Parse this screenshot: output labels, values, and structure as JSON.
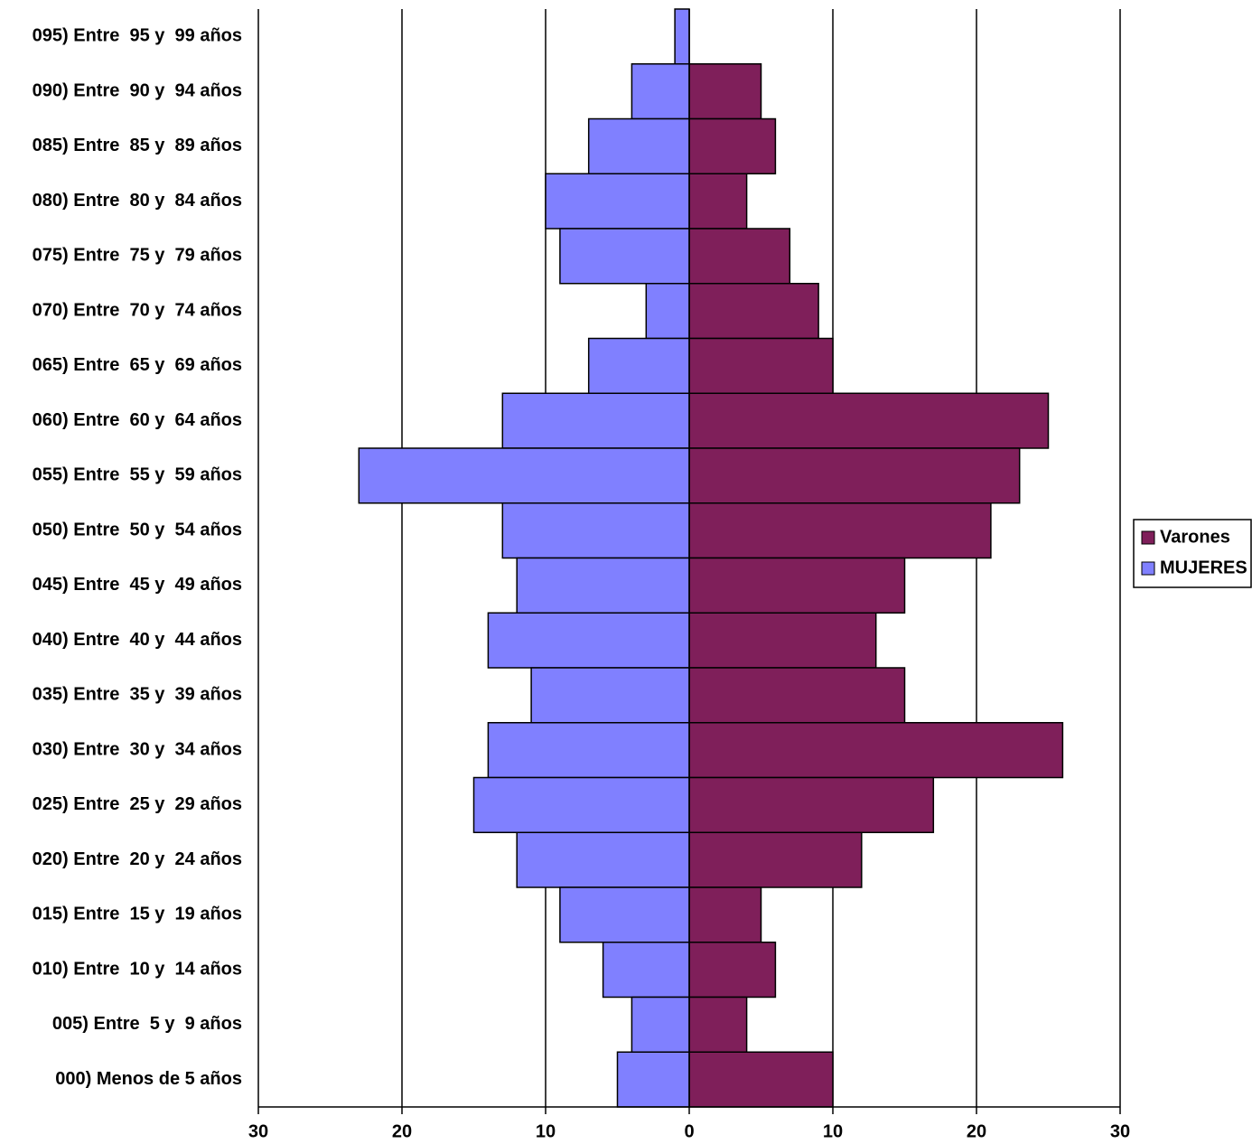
{
  "chart_data": {
    "type": "pyramid",
    "categories": [
      "095) Entre  95 y  99 años",
      "090) Entre  90 y  94 años",
      "085) Entre  85 y  89 años",
      "080) Entre  80 y  84 años",
      "075) Entre  75 y  79 años",
      "070) Entre  70 y  74 años",
      "065) Entre  65 y  69 años",
      "060) Entre  60 y  64 años",
      "055) Entre  55 y  59 años",
      "050) Entre  50 y  54 años",
      "045) Entre  45 y  49 años",
      "040) Entre  40 y  44 años",
      "035) Entre  35 y  39 años",
      "030) Entre  30 y  34 años",
      "025) Entre  25 y  29 años",
      "020) Entre  20 y  24 años",
      "015) Entre  15 y  19 años",
      "010) Entre  10 y  14 años",
      "005) Entre  5 y  9 años",
      "000) Menos de 5 años"
    ],
    "series": [
      {
        "name": "Varones",
        "color": "#7f1f5a",
        "values": [
          0,
          5,
          6,
          4,
          7,
          9,
          10,
          25,
          23,
          21,
          15,
          13,
          15,
          26,
          17,
          12,
          5,
          6,
          4,
          10
        ]
      },
      {
        "name": "MUJERES",
        "color": "#8080ff",
        "values": [
          -1,
          -4,
          -7,
          -10,
          -9,
          -3,
          -7,
          -13,
          -23,
          -13,
          -12,
          -14,
          -11,
          -14,
          -15,
          -12,
          -9,
          -6,
          -4,
          -5
        ]
      }
    ],
    "xlim": [
      -30,
      30
    ],
    "xticks": [
      {
        "value": -30,
        "label": "30"
      },
      {
        "value": -20,
        "label": "20"
      },
      {
        "value": -10,
        "label": "10"
      },
      0,
      10,
      20,
      30
    ],
    "grid": true,
    "legend": "right"
  }
}
